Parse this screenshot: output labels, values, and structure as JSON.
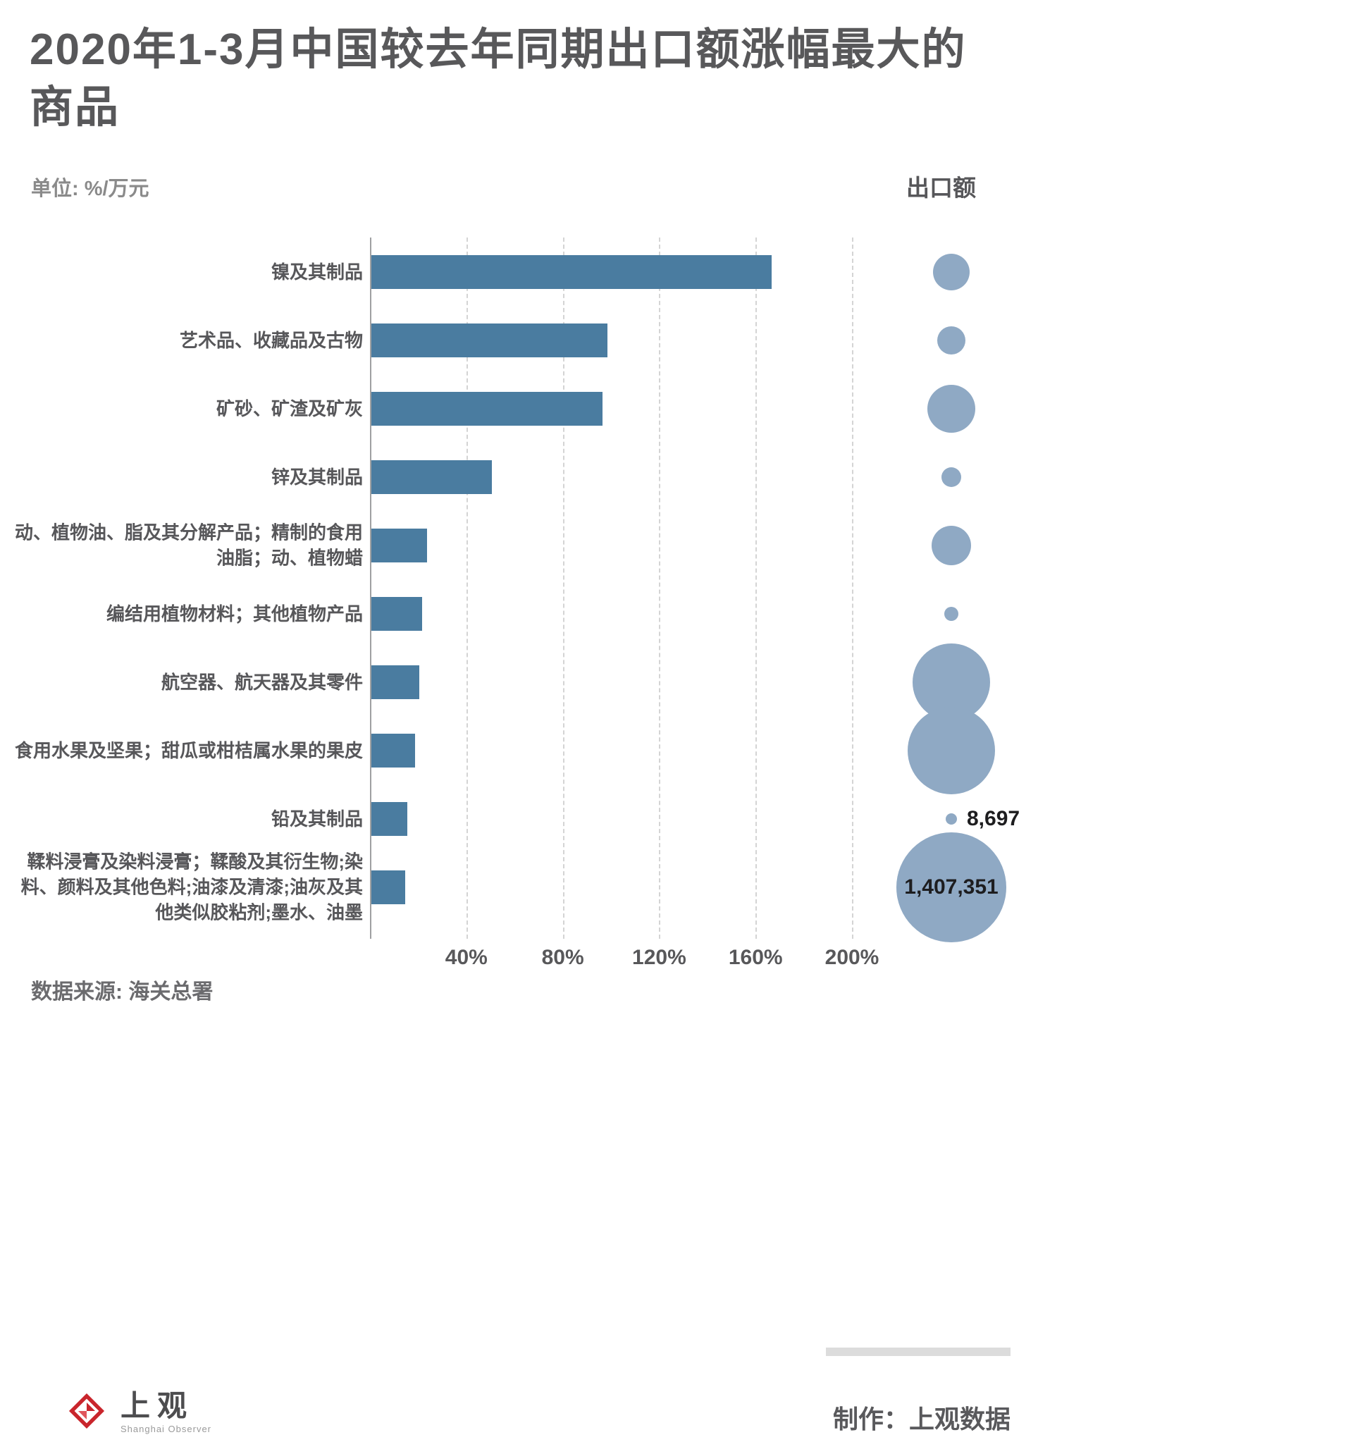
{
  "title": "2020年1-3月中国较去年同期出口额涨幅最大的商品",
  "unit_label": "单位: %/万元",
  "bubble_header": "出口额",
  "source": "数据来源: 海关总署",
  "credit": "制作：上观数据",
  "logo": {
    "name": "上观",
    "subtitle": "Shanghai Observer"
  },
  "chart_data": {
    "type": "bar",
    "title": "2020年1-3月中国较去年同期出口额涨幅最大的商品",
    "unit": "%/万元",
    "categories": [
      "镍及其制品",
      "艺术品、收藏品及古物",
      "矿砂、矿渣及矿灰",
      "锌及其制品",
      "动、植物油、脂及其分解产品；精制的食用油脂；动、植物蜡",
      "编结用植物材料；其他植物产品",
      "航空器、航天器及其零件",
      "食用水果及坚果；甜瓜或柑桔属水果的果皮",
      "铅及其制品",
      "鞣料浸膏及染料浸膏；鞣酸及其衍生物;染料、颜料及其他色料;油漆及清漆;油灰及其他类似胶粘剂;墨水、油墨"
    ],
    "values_growth_pct": [
      166,
      98,
      96,
      50,
      23,
      21,
      20,
      18,
      15,
      14
    ],
    "x_ticks": [
      "40%",
      "80%",
      "120%",
      "160%",
      "200%"
    ],
    "x_tick_values": [
      40,
      80,
      120,
      160,
      200
    ],
    "xlim": [
      0,
      210
    ],
    "grid": "dashed-vertical",
    "legend_position": "right-bubble-column",
    "bubble_column_label": "出口额",
    "bubble_radius_px": [
      26,
      20,
      34,
      14,
      28,
      10,
      55,
      62,
      8,
      78
    ],
    "bubble_value_labels": [
      null,
      null,
      null,
      null,
      null,
      null,
      null,
      null,
      "8,697",
      "1,407,351"
    ],
    "colors": {
      "bar": "#4a7ca0",
      "bubble": "#8fa9c4"
    }
  }
}
